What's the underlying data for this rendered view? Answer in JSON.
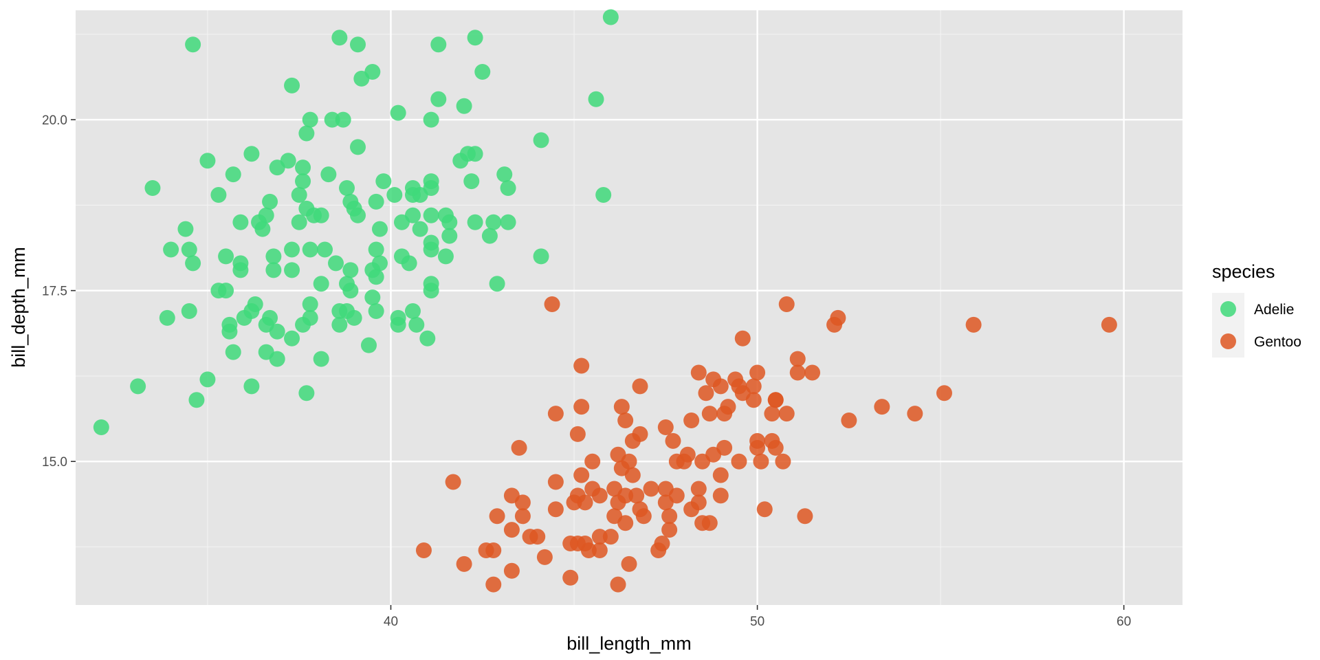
{
  "chart_data": {
    "type": "scatter",
    "title": "",
    "xlabel": "bill_length_mm",
    "ylabel": "bill_depth_mm",
    "xlim": [
      31.4,
      61.6
    ],
    "ylim": [
      12.9,
      21.6
    ],
    "x_ticks": [
      40,
      50,
      60
    ],
    "x_tick_labels": [
      "40",
      "50",
      "60"
    ],
    "y_ticks": [
      15.0,
      17.5,
      20.0
    ],
    "y_tick_labels": [
      "15.0",
      "17.5",
      "20.0"
    ],
    "grid": true,
    "legend": {
      "title": "species",
      "placement": "right"
    },
    "series": [
      {
        "name": "Adelie",
        "color": "#3FD97A",
        "points": [
          [
            46.0,
            21.5
          ],
          [
            34.6,
            21.1
          ],
          [
            38.6,
            21.2
          ],
          [
            39.1,
            21.1
          ],
          [
            41.3,
            21.1
          ],
          [
            42.3,
            21.2
          ],
          [
            39.5,
            20.7
          ],
          [
            39.2,
            20.6
          ],
          [
            42.5,
            20.7
          ],
          [
            37.3,
            20.5
          ],
          [
            45.6,
            20.3
          ],
          [
            41.3,
            20.3
          ],
          [
            42.0,
            20.2
          ],
          [
            40.2,
            20.1
          ],
          [
            37.8,
            20.0
          ],
          [
            38.4,
            20.0
          ],
          [
            38.7,
            20.0
          ],
          [
            41.1,
            20.0
          ],
          [
            39.1,
            19.6
          ],
          [
            37.7,
            19.8
          ],
          [
            44.1,
            19.7
          ],
          [
            36.2,
            19.5
          ],
          [
            42.1,
            19.5
          ],
          [
            42.3,
            19.5
          ],
          [
            35.0,
            19.4
          ],
          [
            37.2,
            19.4
          ],
          [
            41.9,
            19.4
          ],
          [
            36.9,
            19.3
          ],
          [
            37.6,
            19.3
          ],
          [
            35.7,
            19.2
          ],
          [
            38.3,
            19.2
          ],
          [
            43.1,
            19.2
          ],
          [
            37.6,
            19.1
          ],
          [
            39.8,
            19.1
          ],
          [
            41.1,
            19.1
          ],
          [
            42.2,
            19.1
          ],
          [
            33.5,
            19.0
          ],
          [
            38.8,
            19.0
          ],
          [
            40.6,
            19.0
          ],
          [
            41.1,
            19.0
          ],
          [
            43.2,
            19.0
          ],
          [
            35.3,
            18.9
          ],
          [
            37.5,
            18.9
          ],
          [
            40.1,
            18.9
          ],
          [
            40.6,
            18.9
          ],
          [
            40.8,
            18.9
          ],
          [
            45.8,
            18.9
          ],
          [
            36.7,
            18.8
          ],
          [
            38.9,
            18.8
          ],
          [
            39.6,
            18.8
          ],
          [
            37.7,
            18.7
          ],
          [
            39.0,
            18.7
          ],
          [
            36.6,
            18.6
          ],
          [
            37.9,
            18.6
          ],
          [
            38.1,
            18.6
          ],
          [
            39.1,
            18.6
          ],
          [
            40.6,
            18.6
          ],
          [
            41.1,
            18.6
          ],
          [
            41.5,
            18.6
          ],
          [
            35.9,
            18.5
          ],
          [
            36.4,
            18.5
          ],
          [
            37.5,
            18.5
          ],
          [
            40.3,
            18.5
          ],
          [
            41.6,
            18.5
          ],
          [
            42.3,
            18.5
          ],
          [
            42.8,
            18.5
          ],
          [
            43.2,
            18.5
          ],
          [
            34.4,
            18.4
          ],
          [
            36.5,
            18.4
          ],
          [
            39.7,
            18.4
          ],
          [
            40.8,
            18.4
          ],
          [
            41.6,
            18.3
          ],
          [
            42.7,
            18.3
          ],
          [
            41.1,
            18.2
          ],
          [
            34.0,
            18.1
          ],
          [
            34.5,
            18.1
          ],
          [
            37.3,
            18.1
          ],
          [
            37.8,
            18.1
          ],
          [
            38.2,
            18.1
          ],
          [
            39.6,
            18.1
          ],
          [
            41.1,
            18.1
          ],
          [
            35.5,
            18.0
          ],
          [
            36.8,
            18.0
          ],
          [
            40.3,
            18.0
          ],
          [
            41.5,
            18.0
          ],
          [
            44.1,
            18.0
          ],
          [
            34.6,
            17.9
          ],
          [
            35.9,
            17.9
          ],
          [
            38.5,
            17.9
          ],
          [
            39.7,
            17.9
          ],
          [
            40.5,
            17.9
          ],
          [
            35.9,
            17.8
          ],
          [
            36.8,
            17.8
          ],
          [
            37.3,
            17.8
          ],
          [
            39.5,
            17.8
          ],
          [
            38.9,
            17.8
          ],
          [
            39.6,
            17.7
          ],
          [
            38.1,
            17.6
          ],
          [
            38.8,
            17.6
          ],
          [
            41.1,
            17.6
          ],
          [
            42.9,
            17.6
          ],
          [
            35.3,
            17.5
          ],
          [
            35.5,
            17.5
          ],
          [
            38.9,
            17.5
          ],
          [
            41.1,
            17.5
          ],
          [
            39.5,
            17.4
          ],
          [
            36.3,
            17.3
          ],
          [
            37.8,
            17.3
          ],
          [
            36.2,
            17.2
          ],
          [
            34.5,
            17.2
          ],
          [
            38.6,
            17.2
          ],
          [
            39.6,
            17.2
          ],
          [
            38.8,
            17.2
          ],
          [
            40.6,
            17.2
          ],
          [
            33.9,
            17.1
          ],
          [
            36.0,
            17.1
          ],
          [
            36.7,
            17.1
          ],
          [
            37.8,
            17.1
          ],
          [
            39.0,
            17.1
          ],
          [
            40.2,
            17.1
          ],
          [
            35.6,
            17.0
          ],
          [
            36.6,
            17.0
          ],
          [
            37.6,
            17.0
          ],
          [
            38.6,
            17.0
          ],
          [
            40.2,
            17.0
          ],
          [
            40.7,
            17.0
          ],
          [
            35.6,
            16.9
          ],
          [
            36.9,
            16.9
          ],
          [
            37.3,
            16.8
          ],
          [
            41.0,
            16.8
          ],
          [
            39.4,
            16.7
          ],
          [
            35.7,
            16.6
          ],
          [
            36.6,
            16.6
          ],
          [
            38.1,
            16.5
          ],
          [
            36.9,
            16.5
          ],
          [
            35.0,
            16.2
          ],
          [
            32.1,
            15.5
          ],
          [
            33.1,
            16.1
          ],
          [
            36.2,
            16.1
          ],
          [
            37.7,
            16.0
          ],
          [
            34.7,
            15.9
          ]
        ]
      },
      {
        "name": "Gentoo",
        "color": "#DE5722",
        "points": [
          [
            44.4,
            17.3
          ],
          [
            50.8,
            17.3
          ],
          [
            52.2,
            17.1
          ],
          [
            52.1,
            17.0
          ],
          [
            55.9,
            17.0
          ],
          [
            59.6,
            17.0
          ],
          [
            49.6,
            16.8
          ],
          [
            51.1,
            16.5
          ],
          [
            45.2,
            16.4
          ],
          [
            48.4,
            16.3
          ],
          [
            50.0,
            16.3
          ],
          [
            51.1,
            16.3
          ],
          [
            51.5,
            16.3
          ],
          [
            48.8,
            16.2
          ],
          [
            49.4,
            16.2
          ],
          [
            46.8,
            16.1
          ],
          [
            49.0,
            16.1
          ],
          [
            49.5,
            16.1
          ],
          [
            49.9,
            16.1
          ],
          [
            48.6,
            16.0
          ],
          [
            49.6,
            16.0
          ],
          [
            55.1,
            16.0
          ],
          [
            50.5,
            15.9
          ],
          [
            49.9,
            15.9
          ],
          [
            50.5,
            15.9
          ],
          [
            45.2,
            15.8
          ],
          [
            46.3,
            15.8
          ],
          [
            49.2,
            15.8
          ],
          [
            53.4,
            15.8
          ],
          [
            44.5,
            15.7
          ],
          [
            48.7,
            15.7
          ],
          [
            49.1,
            15.7
          ],
          [
            50.4,
            15.7
          ],
          [
            50.8,
            15.7
          ],
          [
            54.3,
            15.7
          ],
          [
            46.4,
            15.6
          ],
          [
            48.2,
            15.6
          ],
          [
            52.5,
            15.6
          ],
          [
            47.5,
            15.5
          ],
          [
            45.1,
            15.4
          ],
          [
            46.8,
            15.4
          ],
          [
            46.6,
            15.3
          ],
          [
            47.7,
            15.3
          ],
          [
            50.0,
            15.3
          ],
          [
            50.4,
            15.3
          ],
          [
            43.5,
            15.2
          ],
          [
            49.1,
            15.2
          ],
          [
            50.0,
            15.2
          ],
          [
            50.5,
            15.2
          ],
          [
            46.2,
            15.1
          ],
          [
            48.1,
            15.1
          ],
          [
            48.8,
            15.1
          ],
          [
            45.5,
            15.0
          ],
          [
            46.5,
            15.0
          ],
          [
            47.8,
            15.0
          ],
          [
            48.0,
            15.0
          ],
          [
            48.5,
            15.0
          ],
          [
            49.5,
            15.0
          ],
          [
            50.1,
            15.0
          ],
          [
            50.7,
            15.0
          ],
          [
            46.3,
            14.9
          ],
          [
            45.2,
            14.8
          ],
          [
            46.6,
            14.8
          ],
          [
            49.0,
            14.8
          ],
          [
            41.7,
            14.7
          ],
          [
            44.5,
            14.7
          ],
          [
            45.5,
            14.6
          ],
          [
            46.1,
            14.6
          ],
          [
            47.5,
            14.6
          ],
          [
            48.4,
            14.6
          ],
          [
            47.1,
            14.6
          ],
          [
            43.3,
            14.5
          ],
          [
            45.1,
            14.5
          ],
          [
            45.7,
            14.5
          ],
          [
            46.4,
            14.5
          ],
          [
            46.7,
            14.5
          ],
          [
            47.8,
            14.5
          ],
          [
            49.0,
            14.5
          ],
          [
            43.6,
            14.4
          ],
          [
            45.0,
            14.4
          ],
          [
            45.3,
            14.4
          ],
          [
            46.2,
            14.4
          ],
          [
            47.5,
            14.4
          ],
          [
            48.4,
            14.4
          ],
          [
            44.5,
            14.3
          ],
          [
            46.8,
            14.3
          ],
          [
            48.2,
            14.3
          ],
          [
            50.2,
            14.3
          ],
          [
            42.9,
            14.2
          ],
          [
            43.6,
            14.2
          ],
          [
            46.1,
            14.2
          ],
          [
            46.9,
            14.2
          ],
          [
            47.6,
            14.2
          ],
          [
            51.3,
            14.2
          ],
          [
            46.4,
            14.1
          ],
          [
            48.5,
            14.1
          ],
          [
            48.7,
            14.1
          ],
          [
            43.3,
            14.0
          ],
          [
            47.6,
            14.0
          ],
          [
            43.8,
            13.9
          ],
          [
            44.0,
            13.9
          ],
          [
            45.7,
            13.9
          ],
          [
            46.0,
            13.9
          ],
          [
            44.9,
            13.8
          ],
          [
            45.1,
            13.8
          ],
          [
            45.3,
            13.8
          ],
          [
            47.4,
            13.8
          ],
          [
            40.9,
            13.7
          ],
          [
            42.6,
            13.7
          ],
          [
            42.8,
            13.7
          ],
          [
            45.4,
            13.7
          ],
          [
            45.7,
            13.7
          ],
          [
            47.3,
            13.7
          ],
          [
            44.2,
            13.6
          ],
          [
            42.0,
            13.5
          ],
          [
            46.5,
            13.5
          ],
          [
            43.3,
            13.4
          ],
          [
            44.9,
            13.3
          ],
          [
            46.2,
            13.2
          ],
          [
            42.8,
            13.2
          ]
        ]
      }
    ]
  }
}
